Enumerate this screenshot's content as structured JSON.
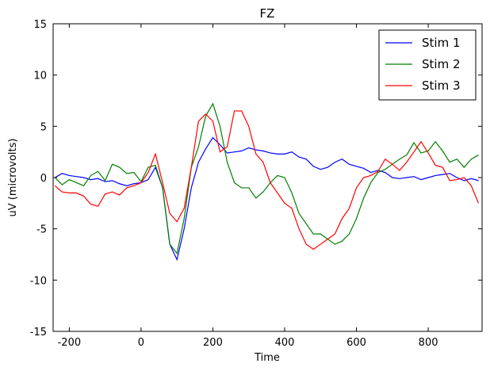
{
  "chart_data": {
    "type": "line",
    "title": "FZ",
    "xlabel": "Time",
    "ylabel": "uV (microvolts)",
    "x": [
      -240,
      -220,
      -200,
      -180,
      -160,
      -140,
      -120,
      -100,
      -80,
      -60,
      -40,
      -20,
      0,
      20,
      40,
      60,
      80,
      100,
      120,
      140,
      160,
      180,
      200,
      220,
      240,
      260,
      280,
      300,
      320,
      340,
      360,
      380,
      400,
      420,
      440,
      460,
      480,
      500,
      520,
      540,
      560,
      580,
      600,
      620,
      640,
      660,
      680,
      700,
      720,
      740,
      760,
      780,
      800,
      820,
      840,
      860,
      880,
      900,
      920,
      940
    ],
    "series": [
      {
        "name": "Stim 1",
        "color": "#0000ff",
        "values": [
          0,
          0.4,
          0.2,
          0.1,
          0,
          -0.2,
          -0.1,
          -0.4,
          -0.3,
          -0.6,
          -0.8,
          -0.6,
          -0.5,
          -0.2,
          1.0,
          -1.0,
          -6.5,
          -8.0,
          -5.0,
          -1.0,
          1.5,
          2.8,
          3.9,
          3.2,
          2.4,
          2.5,
          2.6,
          2.9,
          2.7,
          2.6,
          2.4,
          2.3,
          2.3,
          2.5,
          2.0,
          1.8,
          1.1,
          0.8,
          1.0,
          1.5,
          1.8,
          1.3,
          1.1,
          0.9,
          0.5,
          0.7,
          0.5,
          0.0,
          -0.1,
          0.0,
          0.1,
          -0.2,
          0.0,
          0.2,
          0.3,
          0.4,
          0.0,
          -0.3,
          -0.1,
          -0.3
        ]
      },
      {
        "name": "Stim 2",
        "color": "#008000",
        "values": [
          0,
          -0.7,
          -0.2,
          -0.5,
          -0.8,
          0.2,
          0.6,
          -0.3,
          1.3,
          1.0,
          0.4,
          0.5,
          -0.4,
          1.0,
          1.2,
          -1.0,
          -6.5,
          -7.4,
          -4.0,
          1.0,
          3.0,
          6.0,
          7.2,
          5.0,
          1.5,
          -0.5,
          -1.0,
          -1.0,
          -2.0,
          -1.4,
          -0.5,
          0.2,
          0.0,
          -1.5,
          -3.5,
          -4.5,
          -5.5,
          -5.5,
          -6.0,
          -6.5,
          -6.2,
          -5.5,
          -4.0,
          -2.0,
          -0.5,
          0.5,
          0.8,
          1.3,
          1.8,
          2.2,
          3.4,
          2.4,
          2.6,
          3.5,
          2.6,
          1.5,
          1.8,
          1.0,
          1.8,
          2.2
        ]
      },
      {
        "name": "Stim 3",
        "color": "#ff0000",
        "values": [
          -0.8,
          -1.4,
          -1.5,
          -1.5,
          -1.8,
          -2.6,
          -2.8,
          -1.6,
          -1.4,
          -1.7,
          -1.0,
          -0.8,
          -0.5,
          0.5,
          2.3,
          -0.5,
          -3.5,
          -4.3,
          -3.0,
          1.0,
          5.5,
          6.2,
          5.5,
          2.5,
          3.0,
          6.5,
          6.5,
          5.0,
          2.3,
          1.5,
          -0.5,
          -1.5,
          -2.5,
          -3.0,
          -5.0,
          -6.5,
          -7.0,
          -6.5,
          -6.0,
          -5.5,
          -4.0,
          -3.0,
          -1.0,
          0.0,
          0.2,
          0.6,
          1.8,
          1.3,
          0.7,
          1.5,
          2.5,
          3.5,
          2.4,
          1.2,
          1.0,
          -0.3,
          -0.2,
          0.0,
          -0.8,
          -2.5
        ]
      }
    ],
    "xlim": [
      -245,
      950
    ],
    "ylim": [
      -15,
      15
    ],
    "xticks": [
      -200,
      0,
      200,
      400,
      600,
      800
    ],
    "yticks": [
      -15,
      -10,
      -5,
      0,
      5,
      10,
      15
    ],
    "legend": "upper right"
  }
}
